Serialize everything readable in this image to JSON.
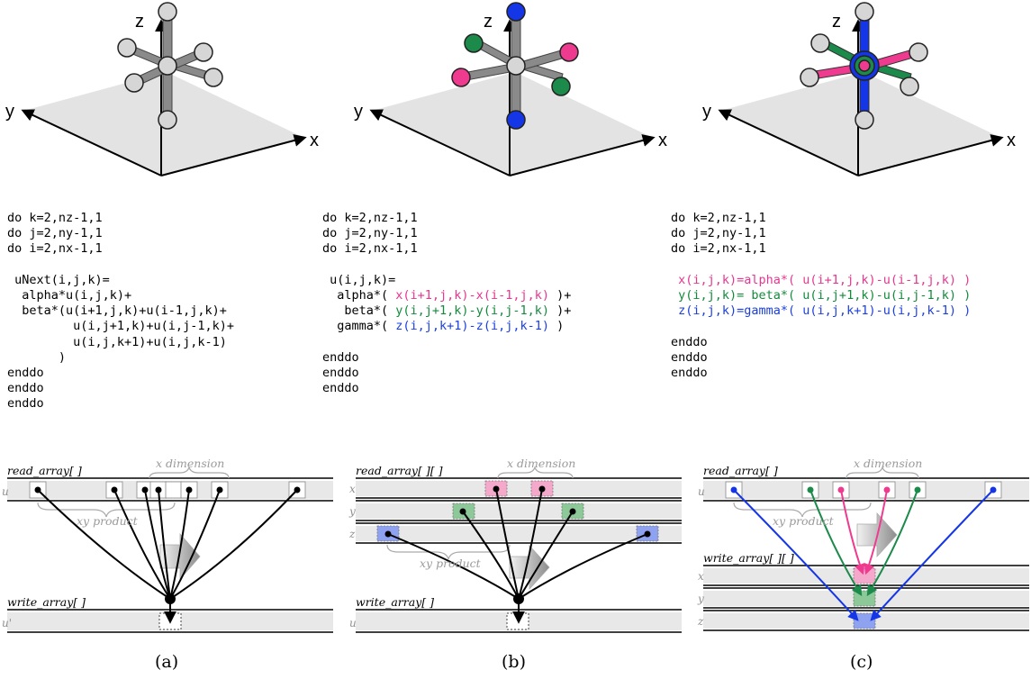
{
  "axes": {
    "x": "x",
    "y": "y",
    "z": "z"
  },
  "colors": {
    "pink": "#ef3b8f",
    "green": "#1b8a4a",
    "blue": "#1536e6",
    "gray_node": "#d6d6d6",
    "gray_arm": "#8a8a8a"
  },
  "code_a": {
    "loop_k": "do k=2,nz-1,1",
    "loop_j": "do j=2,ny-1,1",
    "loop_i": "do i=2,nx-1,1",
    "assign": " uNext(i,j,k)=",
    "alpha_line": "  alpha*u(i,j,k)+",
    "beta_line1": "  beta*(u(i+1,j,k)+u(i-1,j,k)+",
    "beta_line2": "         u(i,j+1,k)+u(i,j-1,k)+",
    "beta_line3": "         u(i,j,k+1)+u(i,j,k-1)",
    "close_paren": "       )",
    "end1": "enddo",
    "end2": "enddo",
    "end3": "enddo"
  },
  "code_b": {
    "loop_k": "do k=2,nz-1,1",
    "loop_j": "do j=2,ny-1,1",
    "loop_i": "do i=2,nx-1,1",
    "assign": " u(i,j,k)=",
    "alpha_prefix": "  alpha*( ",
    "alpha_expr": "x(i+1,j,k)-x(i-1,j,k)",
    "alpha_suffix": " )+",
    "beta_prefix": "   beta*( ",
    "beta_expr": "y(i,j+1,k)-y(i,j-1,k)",
    "beta_suffix": " )+",
    "gamma_prefix": "  gamma*( ",
    "gamma_expr": "z(i,j,k+1)-z(i,j,k-1)",
    "gamma_suffix": " )",
    "end1": "enddo",
    "end2": "enddo",
    "end3": "enddo"
  },
  "code_c": {
    "loop_k": "do k=2,nz-1,1",
    "loop_j": "do j=2,ny-1,1",
    "loop_i": "do i=2,nx-1,1",
    "x_line": " x(i,j,k)=alpha*( u(i+1,j,k)-u(i-1,j,k) )",
    "y_line": " y(i,j,k)= beta*( u(i,j+1,k)-u(i,j-1,k) )",
    "z_line": " z(i,j,k)=gamma*( u(i,j,k+1)-u(i,j,k-1) )",
    "end1": "enddo",
    "end2": "enddo",
    "end3": "enddo"
  },
  "memory": {
    "read_a": "read_array[ ]",
    "read_b": "read_array[ ][ ]",
    "read_c": "read_array[ ]",
    "write_a": "write_array[ ]",
    "write_b": "write_array[ ]",
    "write_c": "write_array[ ][ ]",
    "x_dimension": "x dimension",
    "xy_product": "xy product",
    "u": "u",
    "u_prime": "u'",
    "x": "x",
    "y": "y",
    "z": "z"
  },
  "captions": {
    "a": "(a)",
    "b": "(b)",
    "c": "(c)"
  }
}
